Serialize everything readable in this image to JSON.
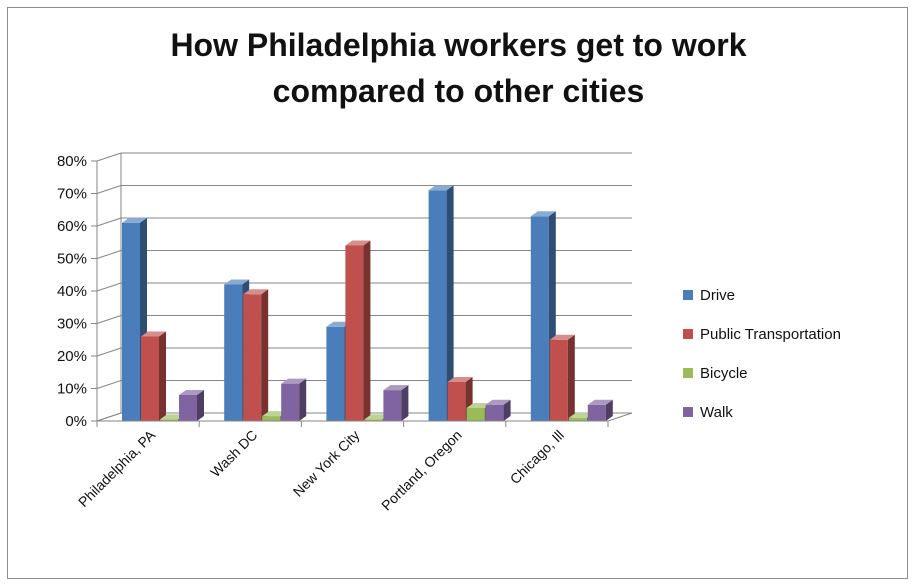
{
  "chart_data": {
    "type": "bar",
    "style": "3d-clustered-column",
    "title": "How Philadelphia workers get to work\ncompared to other cities",
    "categories": [
      "Philadelphia, PA",
      "Wash DC",
      "New York City",
      "Portland, Oregon",
      "Chicago, Ill"
    ],
    "series": [
      {
        "name": "Drive",
        "color": "#4a7ebb",
        "values": [
          61,
          42,
          29,
          71,
          63
        ]
      },
      {
        "name": "Public Transportation",
        "color": "#c0504d",
        "values": [
          26,
          39,
          54,
          12,
          25
        ]
      },
      {
        "name": "Bicycle",
        "color": "#9bbb59",
        "values": [
          0.5,
          1.5,
          0.5,
          4,
          1
        ]
      },
      {
        "name": "Walk",
        "color": "#8064a2",
        "values": [
          8,
          11.5,
          9.5,
          5,
          5
        ]
      }
    ],
    "ylim": [
      0,
      80
    ],
    "yticks": [
      "0%",
      "10%",
      "20%",
      "30%",
      "40%",
      "50%",
      "60%",
      "70%",
      "80%"
    ],
    "ytick_values": [
      0,
      10,
      20,
      30,
      40,
      50,
      60,
      70,
      80
    ],
    "grid": true,
    "legend_position": "right"
  }
}
